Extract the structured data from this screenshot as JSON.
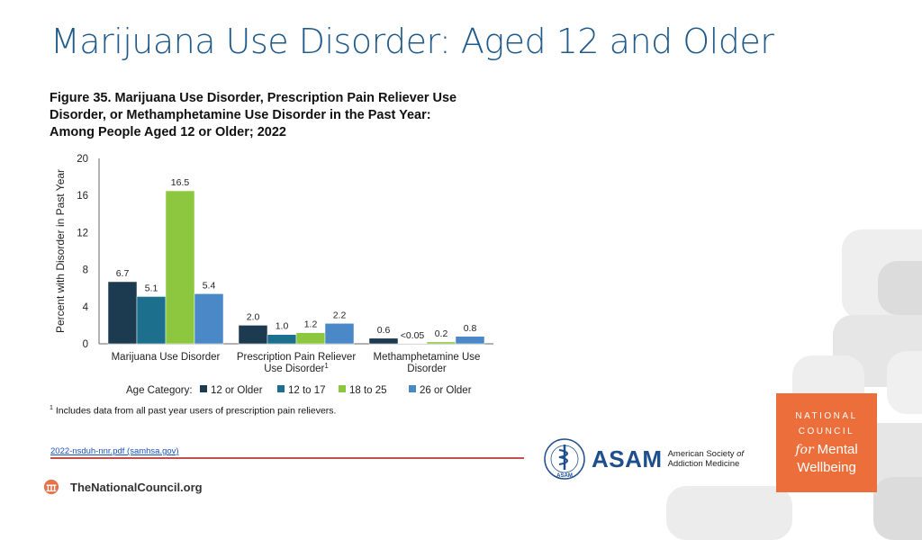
{
  "slide": {
    "title": "Marijuana Use Disorder: Aged 12 and Older",
    "figure_title_lines": [
      "Figure 35. Marijuana Use Disorder, Prescription Pain Reliever Use",
      "Disorder, or Methamphetamine Use Disorder in the Past Year:",
      "Among People Aged 12 or Older; 2022"
    ],
    "footnote_mark": "1",
    "footnote": "Includes data from all past year users of prescription pain relievers.",
    "source_link": "2022-nsduh-nnr.pdf (samhsa.gov)",
    "footer_text": "TheNationalCouncil.org"
  },
  "asam": {
    "word": "ASAM",
    "line1": "American Society ",
    "line1_em": "of",
    "line2": "Addiction Medicine",
    "seal_text": "ASAM"
  },
  "national_council": {
    "line1": "NATIONAL",
    "line2": "COUNCIL",
    "for": "for",
    "mental": "Mental",
    "wellbeing": "Wellbeing",
    "color": "#ec6e3b"
  },
  "chart_data": {
    "type": "bar",
    "ylabel": "Percent with Disorder in Past Year",
    "ylim": [
      0,
      20
    ],
    "yticks": [
      0,
      4,
      8,
      12,
      16,
      20
    ],
    "grid": false,
    "categories": [
      [
        "Marijuana Use Disorder"
      ],
      [
        "Prescription Pain Reliever",
        "Use Disorder"
      ],
      [
        "Methamphetamine Use",
        "Disorder"
      ]
    ],
    "category_footnote_marks": [
      "",
      "1",
      ""
    ],
    "legend_title": "Age Category:",
    "legend_position": "bottom",
    "series": [
      {
        "name": "12 or Older",
        "color": "#1c3b50",
        "values": [
          6.7,
          2.0,
          0.6
        ],
        "labels": [
          "6.7",
          "2.0",
          "0.6"
        ]
      },
      {
        "name": "12 to 17",
        "color": "#1d6f8e",
        "values": [
          5.1,
          1.0,
          0.02
        ],
        "labels": [
          "5.1",
          "1.0",
          "<0.05"
        ]
      },
      {
        "name": "18 to 25",
        "color": "#8dc63f",
        "values": [
          16.5,
          1.2,
          0.2
        ],
        "labels": [
          "16.5",
          "1.2",
          "0.2"
        ]
      },
      {
        "name": "26 or Older",
        "color": "#4a88c8",
        "values": [
          5.4,
          2.2,
          0.8
        ],
        "labels": [
          "5.4",
          "2.2",
          "0.8"
        ]
      }
    ]
  }
}
